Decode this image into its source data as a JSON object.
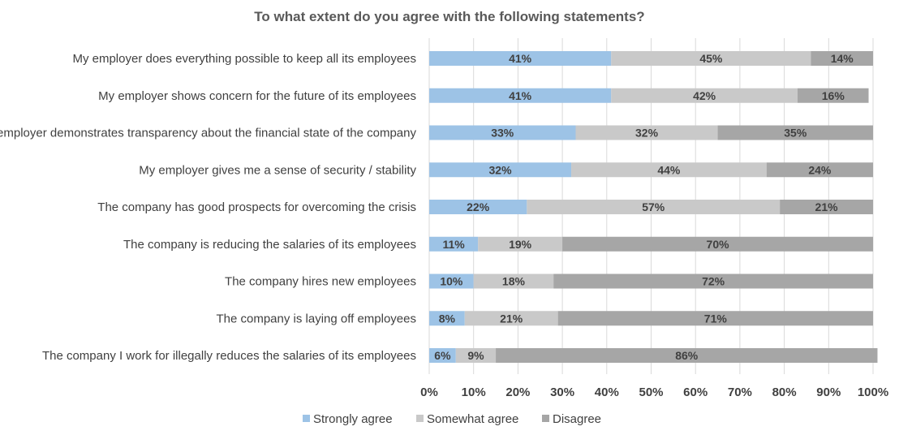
{
  "chart_data": {
    "type": "bar",
    "orientation": "horizontal",
    "stacked": true,
    "title": "To what extent do you agree with the following statements?",
    "categories": [
      "My employer does everything possible to keep all its employees",
      "My employer shows concern for the future of its employees",
      "My employer demonstrates transparency about the financial state of the company",
      "My employer gives me a sense of security / stability",
      "The company has good prospects for overcoming the crisis",
      "The company is reducing the salaries of its employees",
      "The company hires new employees",
      "The company is laying off employees",
      "The company I work for illegally reduces the salaries of its employees"
    ],
    "series": [
      {
        "name": "Strongly agree",
        "color": "#9dc3e6",
        "values": [
          41,
          41,
          33,
          32,
          22,
          11,
          10,
          8,
          6
        ]
      },
      {
        "name": "Somewhat agree",
        "color": "#c9c9c9",
        "values": [
          45,
          42,
          32,
          44,
          57,
          19,
          18,
          21,
          9
        ]
      },
      {
        "name": "Disagree",
        "color": "#a6a6a6",
        "values": [
          14,
          16,
          35,
          24,
          21,
          70,
          72,
          71,
          86
        ]
      }
    ],
    "xlim": [
      0,
      100
    ],
    "xticks": [
      "0%",
      "10%",
      "20%",
      "30%",
      "40%",
      "50%",
      "60%",
      "70%",
      "80%",
      "90%",
      "100%"
    ],
    "value_suffix": "%",
    "grid": true,
    "legend_position": "bottom"
  }
}
